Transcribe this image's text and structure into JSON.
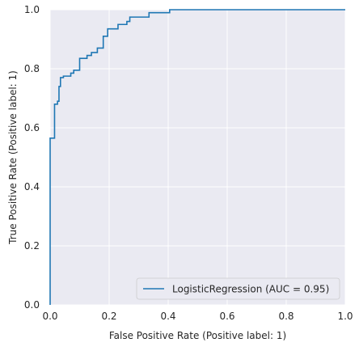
{
  "chart_data": {
    "type": "line",
    "title": "",
    "xlabel": "False Positive Rate (Positive label: 1)",
    "ylabel": "True Positive Rate (Positive label: 1)",
    "xlim": [
      0,
      1
    ],
    "ylim": [
      0,
      1
    ],
    "xticks": [
      "0.0",
      "0.2",
      "0.4",
      "0.6",
      "0.8",
      "1.0"
    ],
    "yticks": [
      "0.0",
      "0.2",
      "0.4",
      "0.6",
      "0.8",
      "1.0"
    ],
    "grid": true,
    "legend_position": "lower-right",
    "colors": {
      "series": "#1f77b4",
      "background": "#eaeaf2",
      "grid": "#ffffff"
    },
    "series": [
      {
        "name": "LogisticRegression (AUC = 0.95)",
        "x": [
          0.0,
          0.0,
          0.015,
          0.015,
          0.025,
          0.025,
          0.03,
          0.03,
          0.035,
          0.035,
          0.045,
          0.045,
          0.07,
          0.07,
          0.08,
          0.08,
          0.1,
          0.1,
          0.125,
          0.125,
          0.14,
          0.14,
          0.16,
          0.16,
          0.18,
          0.18,
          0.195,
          0.195,
          0.23,
          0.23,
          0.26,
          0.26,
          0.27,
          0.27,
          0.335,
          0.335,
          0.405,
          0.405,
          1.0
        ],
        "y": [
          0.0,
          0.565,
          0.565,
          0.68,
          0.68,
          0.69,
          0.69,
          0.74,
          0.74,
          0.77,
          0.77,
          0.775,
          0.775,
          0.785,
          0.785,
          0.795,
          0.795,
          0.835,
          0.835,
          0.845,
          0.845,
          0.855,
          0.855,
          0.87,
          0.87,
          0.91,
          0.91,
          0.935,
          0.935,
          0.95,
          0.95,
          0.96,
          0.96,
          0.975,
          0.975,
          0.99,
          0.99,
          1.0,
          1.0
        ]
      }
    ]
  }
}
